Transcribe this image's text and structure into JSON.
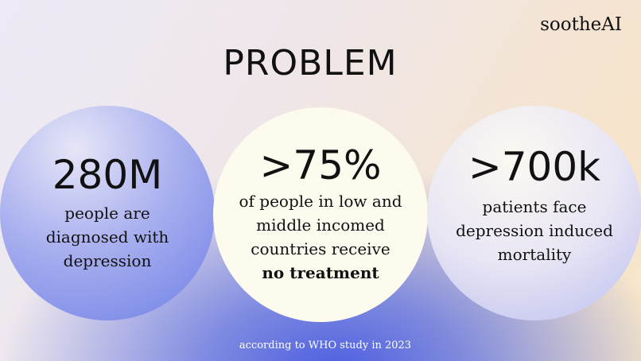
{
  "brand": "sootheAI",
  "title": "PROBLEM",
  "stats": [
    {
      "figure": "280M",
      "lines": [
        "people are",
        "diagnosed with",
        "depression"
      ]
    },
    {
      "figure": ">75%",
      "lines": [
        "of people in low and",
        "middle incomed",
        "countries receive"
      ],
      "emphasis": "no treatment"
    },
    {
      "figure": ">700k",
      "lines": [
        "patients face",
        "depression induced",
        "mortality"
      ]
    }
  ],
  "footer": "according to WHO study in 2023"
}
